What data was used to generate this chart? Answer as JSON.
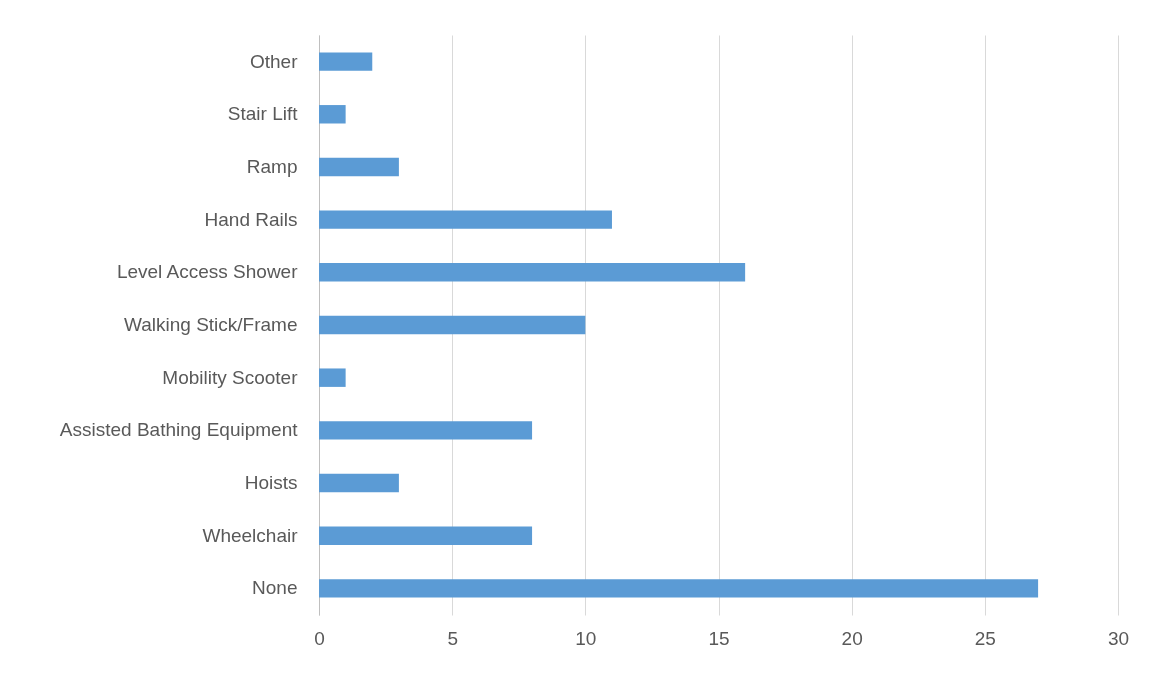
{
  "chart_data": {
    "type": "bar",
    "orientation": "horizontal",
    "categories": [
      "Other",
      "Stair Lift",
      "Ramp",
      "Hand Rails",
      "Level Access Shower",
      "Walking Stick/Frame",
      "Mobility Scooter",
      "Assisted Bathing Equipment",
      "Hoists",
      "Wheelchair",
      "None"
    ],
    "values": [
      2,
      1,
      3,
      11,
      16,
      10,
      1,
      8,
      3,
      8,
      27
    ],
    "color": "#5b9bd5",
    "xlim": [
      0,
      30
    ],
    "xticks": [
      0,
      5,
      10,
      15,
      20,
      25,
      30
    ],
    "grid": "x"
  }
}
